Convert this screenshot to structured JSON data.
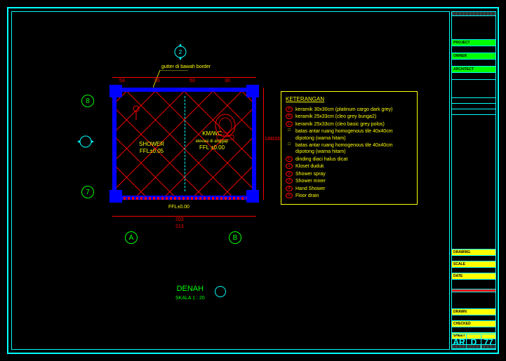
{
  "sheet": {
    "code1": "AR",
    "code2": "D",
    "code3": "77"
  },
  "drawing_title": {
    "name": "DENAH",
    "scale": "SKALA 1 : 20"
  },
  "note": "gutter di bawah border",
  "grid_marks": {
    "top_left": "8",
    "top_right": "7",
    "bottom_a": "A",
    "bottom_b": "B"
  },
  "rooms": {
    "shower": {
      "name": "SHOWER",
      "ffl": "FFL±0.05"
    },
    "wc": {
      "name": "KM/WC",
      "sub": "elevasi di anggap",
      "ffl": "FFL ±0.00"
    }
  },
  "ground_ffl": "FFL±0.00",
  "dims": {
    "top_outer": "213",
    "top_inner": "203",
    "right_outer": "160",
    "right_inner_a": "148",
    "top_seg_a": "53",
    "top_seg_b": "55",
    "top_seg_c": "53",
    "top_seg_d": "30"
  },
  "legend": {
    "title": "KETERANGAN",
    "items": [
      {
        "sym": "A",
        "shape": "circ",
        "text": "keramik 30x30cm (platinum cargo dark grey)"
      },
      {
        "sym": "B",
        "shape": "circ",
        "text": "keramik 25x33cm (cleo grey bunga2)"
      },
      {
        "sym": "C",
        "shape": "circ",
        "text": "keramik 25x33cm (cleo basic grey polos)"
      },
      {
        "sym": "□",
        "shape": "none",
        "text": "batas antar ruang homogenous tile 40x40cm dipotong (warna hitam)"
      },
      {
        "sym": "□",
        "shape": "none",
        "text": "batas antar ruang homogenous tile 40x40cm dipotong (warna hitam)"
      },
      {
        "sym": "E",
        "shape": "circ",
        "text": "dinding diaci halus dicat"
      },
      {
        "sym": "1",
        "shape": "circ",
        "text": "Kloset duduk"
      },
      {
        "sym": "2",
        "shape": "circ",
        "text": "Shower spray"
      },
      {
        "sym": "3",
        "shape": "circ",
        "text": "Shower mixer"
      },
      {
        "sym": "4",
        "shape": "circ",
        "text": "Hand Shower"
      },
      {
        "sym": "5",
        "shape": "circ",
        "text": "Floor drain"
      }
    ]
  },
  "titleblock": {
    "green_rows": [
      "PROJECT",
      "OWNER",
      "ARCHITECT"
    ],
    "yellow_rows": [
      "DRAWING",
      "SCALE",
      "DATE",
      "DRAWN",
      "CHECKED",
      "SHEET"
    ]
  },
  "colors": {
    "cyan": "#00ffff",
    "yellow": "#ffff00",
    "green": "#00ff00",
    "red": "#ff0000",
    "blue": "#0000ff",
    "bg": "#000000"
  }
}
